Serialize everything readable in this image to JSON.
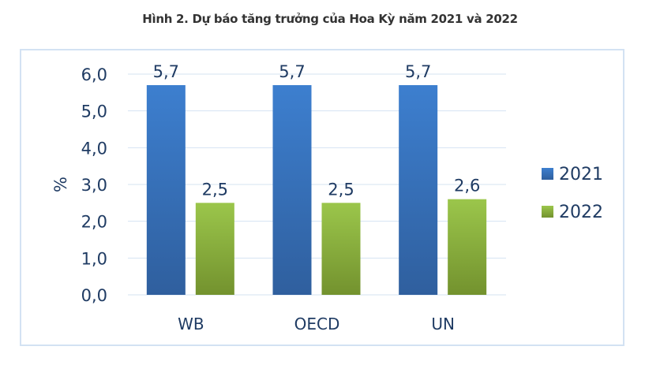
{
  "chart_data": {
    "type": "bar",
    "title": "Hình 2. Dự báo tăng trưởng của Hoa Kỳ năm 2021 và 2022",
    "xlabel": "",
    "ylabel": "%",
    "ylim": [
      0,
      6
    ],
    "yticks": [
      "0,0",
      "1,0",
      "2,0",
      "3,0",
      "4,0",
      "5,0",
      "6,0"
    ],
    "categories": [
      "WB",
      "OECD",
      "UN"
    ],
    "series": [
      {
        "name": "2021",
        "values": [
          5.7,
          5.7,
          5.7
        ],
        "labels": [
          "5,7",
          "5,7",
          "5,7"
        ],
        "color_top": "#3d7fcf",
        "color_bottom": "#2f5f9e"
      },
      {
        "name": "2022",
        "values": [
          2.5,
          2.5,
          2.6
        ],
        "labels": [
          "2,5",
          "2,5",
          "2,6"
        ],
        "color_top": "#9bc64b",
        "color_bottom": "#73922e"
      }
    ],
    "grid": true,
    "legend": "right"
  }
}
